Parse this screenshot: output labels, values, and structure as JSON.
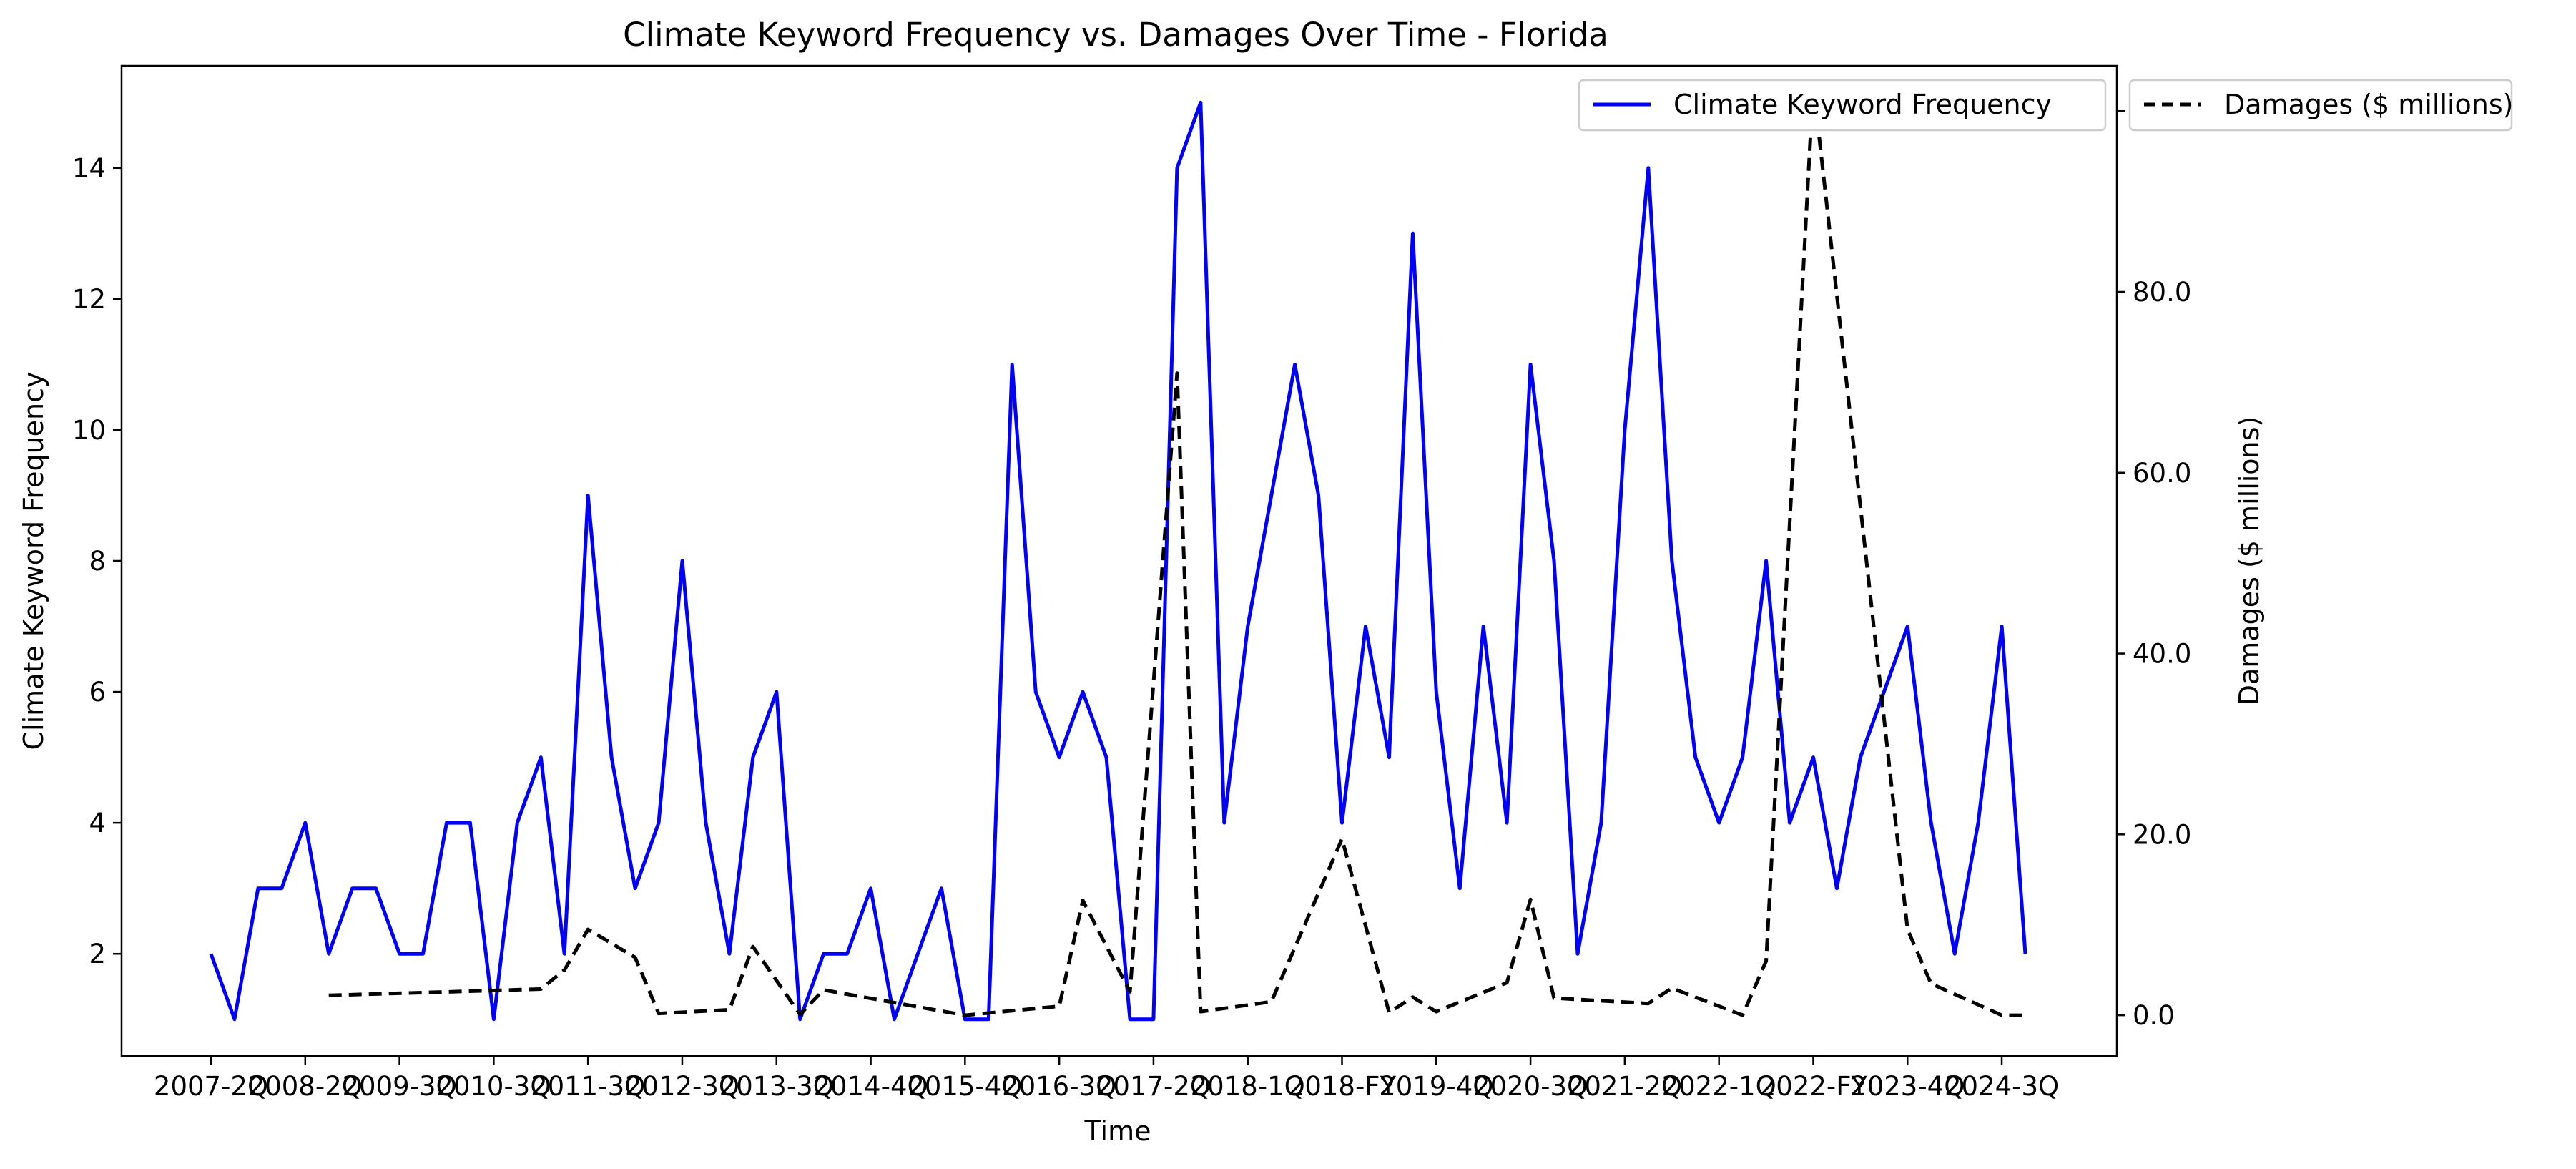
{
  "chart_data": {
    "type": "line",
    "title": "Climate Keyword Frequency vs. Damages Over Time - Florida",
    "xlabel": "Time",
    "ylabel_left": "Climate Keyword Frequency",
    "ylabel_right": "Damages ($ millions)",
    "x_tick_labels": [
      "2007-2Q",
      "2008-2Q",
      "2009-3Q",
      "2010-3Q",
      "2011-3Q",
      "2012-3Q",
      "2013-3Q",
      "2014-4Q",
      "2015-4Q",
      "2016-3Q",
      "2017-2Q",
      "2018-1Q",
      "2018-FY",
      "2019-4Q",
      "2020-3Q",
      "2021-2Q",
      "2022-1Q",
      "2022-FY",
      "2023-4Q",
      "2024-3Q"
    ],
    "left_ylim": [
      0.44,
      15.56
    ],
    "left_yticks": [
      2,
      4,
      6,
      8,
      10,
      12,
      14
    ],
    "right_ylim": [
      -4.5,
      105.0
    ],
    "right_yticks": [
      "0.0",
      "20.0",
      "40.0",
      "60.0",
      "80.0",
      "100.0"
    ],
    "grid": false,
    "series": [
      {
        "name": "Climate Keyword Frequency",
        "axis": "left",
        "color": "#0000ff",
        "style": "solid",
        "values": [
          2,
          1,
          3,
          3,
          4,
          2,
          3,
          3,
          2,
          2,
          4,
          4,
          1,
          4,
          5,
          2,
          9,
          5,
          3,
          4,
          8,
          4,
          2,
          5,
          6,
          1,
          2,
          2,
          3,
          1,
          2,
          3,
          1,
          1,
          11,
          6,
          5,
          6,
          5,
          1,
          1,
          14,
          15,
          4,
          7,
          9,
          11,
          9,
          4,
          7,
          5,
          13,
          6,
          3,
          7,
          4,
          11,
          8,
          2,
          4,
          10,
          14,
          8,
          5,
          4,
          5,
          8,
          4,
          5,
          3,
          5,
          6,
          7,
          4,
          2,
          4,
          7,
          2
        ]
      },
      {
        "name": "Damages ($ millions)",
        "axis": "right",
        "color": "#000000",
        "style": "dashed",
        "values": [
          null,
          null,
          null,
          null,
          null,
          2.2,
          null,
          null,
          null,
          null,
          null,
          null,
          null,
          null,
          2.9,
          5.0,
          9.5,
          null,
          6.4,
          0.2,
          null,
          null,
          0.6,
          7.6,
          null,
          0.1,
          2.8,
          null,
          null,
          null,
          null,
          null,
          0.0,
          null,
          null,
          null,
          1.0,
          12.7,
          null,
          2.6,
          null,
          71.0,
          0.4,
          null,
          null,
          1.5,
          null,
          null,
          19.5,
          null,
          0.3,
          2.0,
          0.4,
          null,
          null,
          3.6,
          12.8,
          1.9,
          null,
          null,
          null,
          1.3,
          3.0,
          null,
          null,
          0.0,
          6.0,
          null,
          103.0,
          null,
          null,
          null,
          9.5,
          3.5,
          null,
          null,
          0.0,
          0.0
        ]
      }
    ],
    "legends": [
      {
        "text": "Climate Keyword Frequency",
        "placement": "top-right (inside plot)"
      },
      {
        "text": "Damages ($ millions)",
        "placement": "outside right, top"
      }
    ]
  }
}
